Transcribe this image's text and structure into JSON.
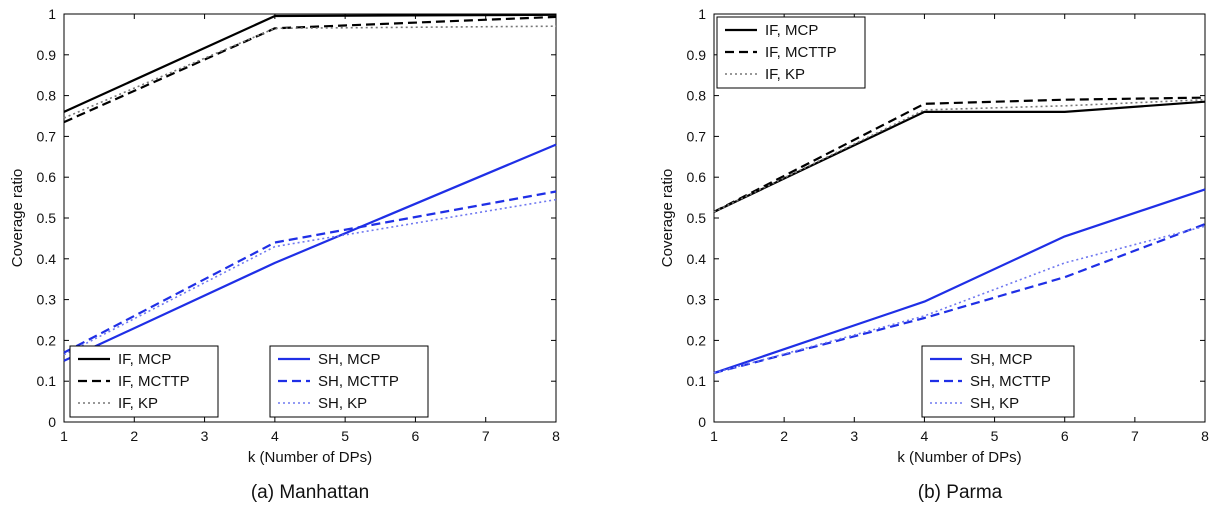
{
  "chart_data": [
    {
      "type": "line",
      "caption": "(a) Manhattan",
      "xlabel": "k (Number of DPs)",
      "ylabel": "Coverage ratio",
      "xlim": [
        1,
        8
      ],
      "ylim": [
        0,
        1
      ],
      "xticks": [
        1,
        2,
        3,
        4,
        5,
        6,
        7,
        8
      ],
      "yticks": [
        "0",
        "0.1",
        "0.2",
        "0.3",
        "0.4",
        "0.5",
        "0.6",
        "0.7",
        "0.8",
        "0.9",
        "1"
      ],
      "x": [
        1,
        4,
        8
      ],
      "grid": false,
      "series": [
        {
          "name": "IF, MCP",
          "color": "#000000",
          "style": "solid",
          "values": [
            0.76,
            0.995,
            0.998
          ]
        },
        {
          "name": "IF, MCTTP",
          "color": "#000000",
          "style": "dashed",
          "values": [
            0.735,
            0.965,
            0.993
          ]
        },
        {
          "name": "IF, KP",
          "color": "#777777",
          "style": "dotted",
          "values": [
            0.745,
            0.965,
            0.97
          ]
        },
        {
          "name": "SH, MCP",
          "color": "#1f2fe6",
          "style": "solid",
          "values": [
            0.15,
            0.39,
            0.68
          ]
        },
        {
          "name": "SH, MCTTP",
          "color": "#1f2fe6",
          "style": "dashed",
          "values": [
            0.17,
            0.44,
            0.565
          ]
        },
        {
          "name": "SH, KP",
          "color": "#6f78f0",
          "style": "dotted",
          "values": [
            0.165,
            0.43,
            0.545
          ]
        }
      ],
      "legends": [
        {
          "position": "bottom-left",
          "entries": [
            "IF, MCP",
            "IF, MCTTP",
            "IF, KP"
          ]
        },
        {
          "position": "bottom-center",
          "entries": [
            "SH, MCP",
            "SH, MCTTP",
            "SH, KP"
          ]
        }
      ]
    },
    {
      "type": "line",
      "caption": "(b) Parma",
      "xlabel": "k (Number of DPs)",
      "ylabel": "Coverage ratio",
      "xlim": [
        1,
        8
      ],
      "ylim": [
        0,
        1
      ],
      "xticks": [
        1,
        2,
        3,
        4,
        5,
        6,
        7,
        8
      ],
      "yticks": [
        "0",
        "0.1",
        "0.2",
        "0.3",
        "0.4",
        "0.5",
        "0.6",
        "0.7",
        "0.8",
        "0.9",
        "1"
      ],
      "x": [
        1,
        4,
        6,
        8
      ],
      "grid": false,
      "series": [
        {
          "name": "IF, MCP",
          "color": "#000000",
          "style": "solid",
          "values": [
            0.515,
            0.76,
            0.76,
            0.785
          ]
        },
        {
          "name": "IF, MCTTP",
          "color": "#000000",
          "style": "dashed",
          "values": [
            0.515,
            0.78,
            0.79,
            0.795
          ]
        },
        {
          "name": "IF, KP",
          "color": "#777777",
          "style": "dotted",
          "values": [
            0.515,
            0.765,
            0.775,
            0.79
          ]
        },
        {
          "name": "SH, MCP",
          "color": "#1f2fe6",
          "style": "solid",
          "values": [
            0.12,
            0.295,
            0.455,
            0.57
          ]
        },
        {
          "name": "SH, MCTTP",
          "color": "#1f2fe6",
          "style": "dashed",
          "values": [
            0.12,
            0.255,
            0.355,
            0.485
          ]
        },
        {
          "name": "SH, KP",
          "color": "#6f78f0",
          "style": "dotted",
          "values": [
            0.12,
            0.26,
            0.39,
            0.48
          ]
        }
      ],
      "legends": [
        {
          "position": "top-left",
          "entries": [
            "IF, MCP",
            "IF, MCTTP",
            "IF, KP"
          ]
        },
        {
          "position": "bottom-right",
          "entries": [
            "SH, MCP",
            "SH, MCTTP",
            "SH, KP"
          ]
        }
      ]
    }
  ]
}
